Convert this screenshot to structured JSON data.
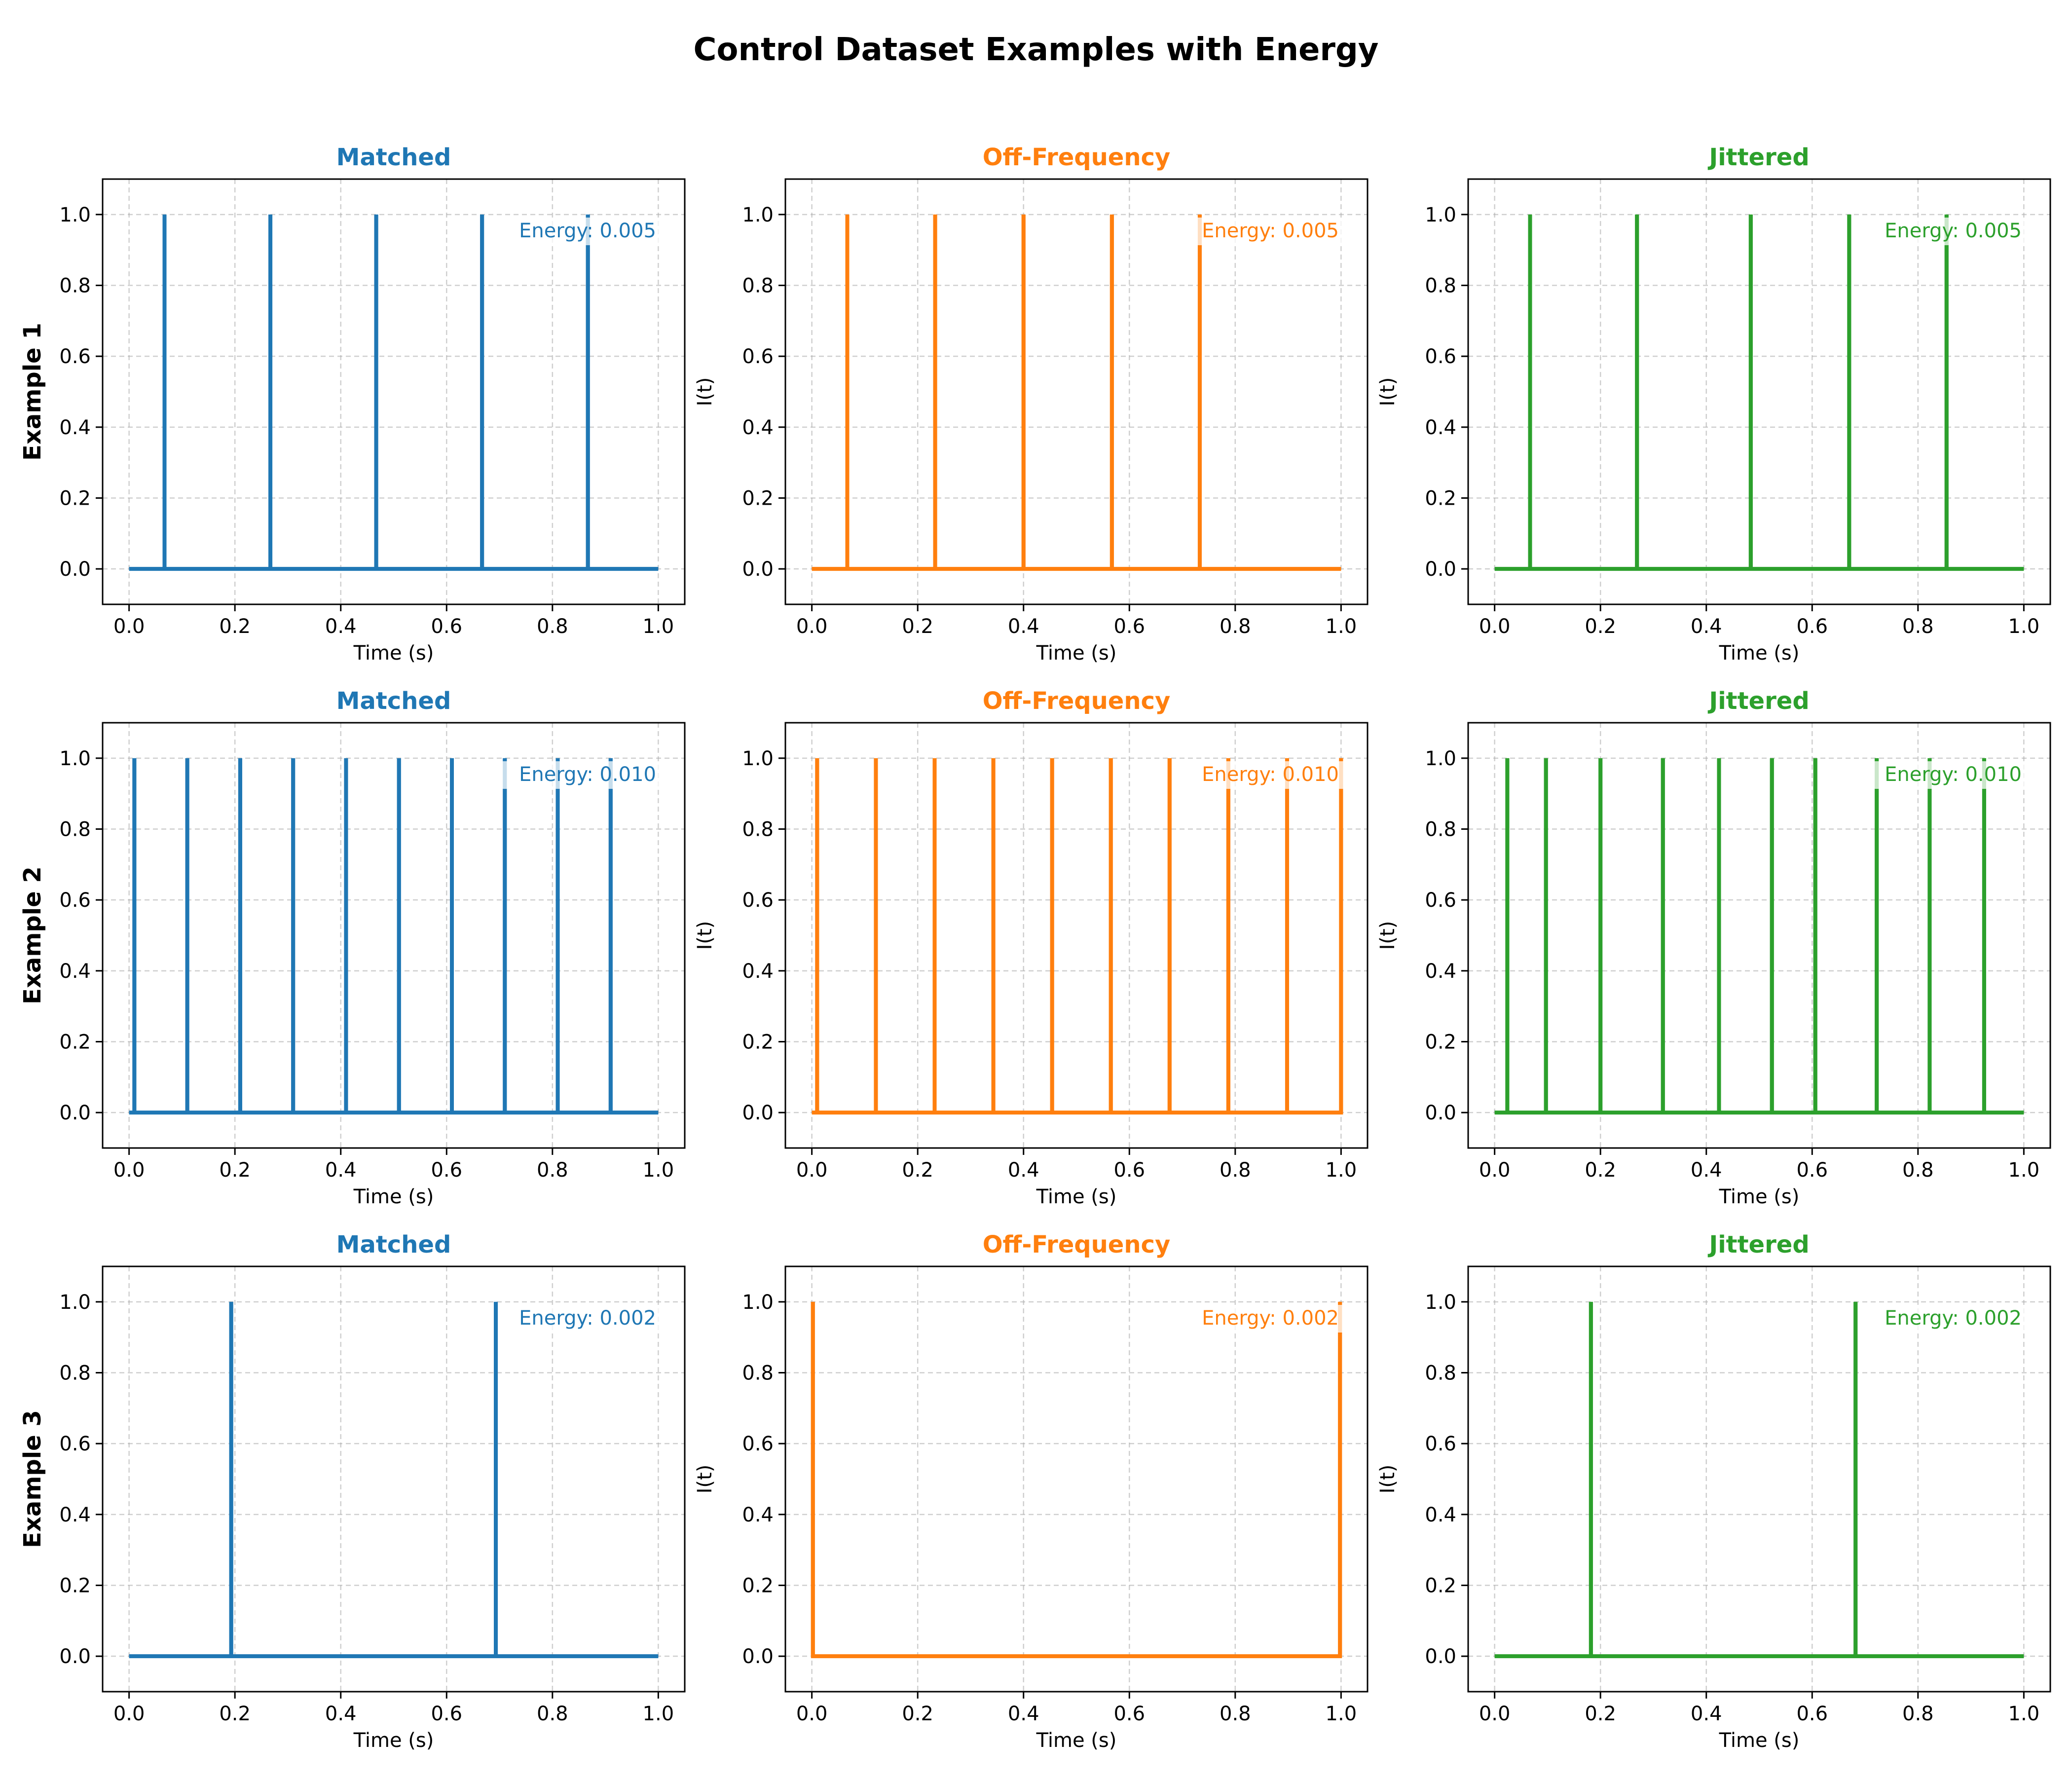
{
  "figure": {
    "title": "Control Dataset Examples with Energy"
  },
  "colors": {
    "Matched": "#1f77b4",
    "Off-Frequency": "#ff7f0e",
    "Jittered": "#2ca02c"
  },
  "chart_data": [
    {
      "type": "line",
      "row": 1,
      "col": 1,
      "title": "Matched",
      "row_label": "Example 1",
      "xlabel": "Time (s)",
      "ylabel": "",
      "xlim": [
        -0.05,
        1.05
      ],
      "ylim": [
        -0.1,
        1.1
      ],
      "xticks": [
        0.0,
        0.2,
        0.4,
        0.6,
        0.8,
        1.0
      ],
      "yticks": [
        0.0,
        0.2,
        0.4,
        0.6,
        0.8,
        1.0
      ],
      "grid": true,
      "annotation": "Energy: 0.005",
      "baseline": 0.0,
      "spike_height": 1.0,
      "spike_times": [
        0.067,
        0.267,
        0.467,
        0.667,
        0.867
      ]
    },
    {
      "type": "line",
      "row": 1,
      "col": 2,
      "title": "Off-Frequency",
      "xlabel": "Time (s)",
      "ylabel": "I(t)",
      "xlim": [
        -0.05,
        1.05
      ],
      "ylim": [
        -0.1,
        1.1
      ],
      "xticks": [
        0.0,
        0.2,
        0.4,
        0.6,
        0.8,
        1.0
      ],
      "yticks": [
        0.0,
        0.2,
        0.4,
        0.6,
        0.8,
        1.0
      ],
      "grid": true,
      "annotation": "Energy: 0.005",
      "baseline": 0.0,
      "spike_height": 1.0,
      "spike_times": [
        0.067,
        0.233,
        0.4,
        0.567,
        0.733
      ]
    },
    {
      "type": "line",
      "row": 1,
      "col": 3,
      "title": "Jittered",
      "xlabel": "Time (s)",
      "ylabel": "I(t)",
      "xlim": [
        -0.05,
        1.05
      ],
      "ylim": [
        -0.1,
        1.1
      ],
      "xticks": [
        0.0,
        0.2,
        0.4,
        0.6,
        0.8,
        1.0
      ],
      "yticks": [
        0.0,
        0.2,
        0.4,
        0.6,
        0.8,
        1.0
      ],
      "grid": true,
      "annotation": "Energy: 0.005",
      "baseline": 0.0,
      "spike_height": 1.0,
      "spike_times": [
        0.067,
        0.269,
        0.484,
        0.67,
        0.854
      ]
    },
    {
      "type": "line",
      "row": 2,
      "col": 1,
      "title": "Matched",
      "row_label": "Example 2",
      "xlabel": "Time (s)",
      "ylabel": "",
      "xlim": [
        -0.05,
        1.05
      ],
      "ylim": [
        -0.1,
        1.1
      ],
      "xticks": [
        0.0,
        0.2,
        0.4,
        0.6,
        0.8,
        1.0
      ],
      "yticks": [
        0.0,
        0.2,
        0.4,
        0.6,
        0.8,
        1.0
      ],
      "grid": true,
      "annotation": "Energy: 0.010",
      "baseline": 0.0,
      "spike_height": 1.0,
      "spike_times": [
        0.01,
        0.11,
        0.21,
        0.31,
        0.41,
        0.51,
        0.61,
        0.71,
        0.81,
        0.91
      ]
    },
    {
      "type": "line",
      "row": 2,
      "col": 2,
      "title": "Off-Frequency",
      "xlabel": "Time (s)",
      "ylabel": "I(t)",
      "xlim": [
        -0.05,
        1.05
      ],
      "ylim": [
        -0.1,
        1.1
      ],
      "xticks": [
        0.0,
        0.2,
        0.4,
        0.6,
        0.8,
        1.0
      ],
      "yticks": [
        0.0,
        0.2,
        0.4,
        0.6,
        0.8,
        1.0
      ],
      "grid": true,
      "annotation": "Energy: 0.010",
      "baseline": 0.0,
      "spike_height": 1.0,
      "spike_times": [
        0.01,
        0.121,
        0.232,
        0.343,
        0.454,
        0.565,
        0.676,
        0.787,
        0.898,
        1.0
      ]
    },
    {
      "type": "line",
      "row": 2,
      "col": 3,
      "title": "Jittered",
      "xlabel": "Time (s)",
      "ylabel": "I(t)",
      "xlim": [
        -0.05,
        1.05
      ],
      "ylim": [
        -0.1,
        1.1
      ],
      "xticks": [
        0.0,
        0.2,
        0.4,
        0.6,
        0.8,
        1.0
      ],
      "yticks": [
        0.0,
        0.2,
        0.4,
        0.6,
        0.8,
        1.0
      ],
      "grid": true,
      "annotation": "Energy: 0.010",
      "baseline": 0.0,
      "spike_height": 1.0,
      "spike_times": [
        0.024,
        0.097,
        0.2,
        0.318,
        0.424,
        0.524,
        0.606,
        0.722,
        0.822,
        0.925
      ]
    },
    {
      "type": "line",
      "row": 3,
      "col": 1,
      "title": "Matched",
      "row_label": "Example 3",
      "xlabel": "Time (s)",
      "ylabel": "",
      "xlim": [
        -0.05,
        1.05
      ],
      "ylim": [
        -0.1,
        1.1
      ],
      "xticks": [
        0.0,
        0.2,
        0.4,
        0.6,
        0.8,
        1.0
      ],
      "yticks": [
        0.0,
        0.2,
        0.4,
        0.6,
        0.8,
        1.0
      ],
      "grid": true,
      "annotation": "Energy: 0.002",
      "baseline": 0.0,
      "spike_height": 1.0,
      "spike_times": [
        0.193,
        0.693
      ]
    },
    {
      "type": "line",
      "row": 3,
      "col": 2,
      "title": "Off-Frequency",
      "xlabel": "Time (s)",
      "ylabel": "I(t)",
      "xlim": [
        -0.05,
        1.05
      ],
      "ylim": [
        -0.1,
        1.1
      ],
      "xticks": [
        0.0,
        0.2,
        0.4,
        0.6,
        0.8,
        1.0
      ],
      "yticks": [
        0.0,
        0.2,
        0.4,
        0.6,
        0.8,
        1.0
      ],
      "grid": true,
      "annotation": "Energy: 0.002",
      "baseline": 0.0,
      "spike_height": 1.0,
      "spike_times": [
        0.002,
        0.998
      ]
    },
    {
      "type": "line",
      "row": 3,
      "col": 3,
      "title": "Jittered",
      "xlabel": "Time (s)",
      "ylabel": "I(t)",
      "xlim": [
        -0.05,
        1.05
      ],
      "ylim": [
        -0.1,
        1.1
      ],
      "xticks": [
        0.0,
        0.2,
        0.4,
        0.6,
        0.8,
        1.0
      ],
      "yticks": [
        0.0,
        0.2,
        0.4,
        0.6,
        0.8,
        1.0
      ],
      "grid": true,
      "annotation": "Energy: 0.002",
      "baseline": 0.0,
      "spike_height": 1.0,
      "spike_times": [
        0.182,
        0.682
      ]
    }
  ]
}
